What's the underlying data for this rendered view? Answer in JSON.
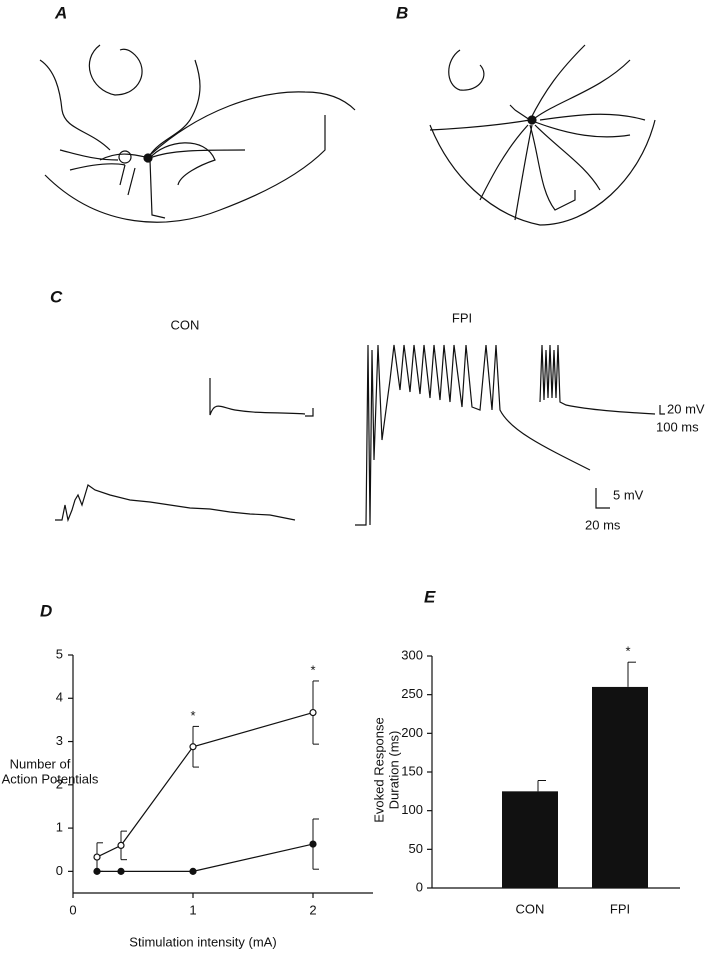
{
  "figure": {
    "panels": [
      "A",
      "B",
      "C",
      "D",
      "E"
    ],
    "trace_labels": [
      "CON",
      "FPI"
    ],
    "scale_bars": [
      "20 mV",
      "100 ms",
      "5 mV",
      "20 ms"
    ]
  },
  "chart_data": [
    {
      "type": "line",
      "xlabel": "Stimulation intensity (mA)",
      "ylabel_lines": [
        "Number of",
        "Action Potentials"
      ],
      "xlim": [
        0,
        2.5
      ],
      "xticks": [
        0,
        1,
        2
      ],
      "ylim": [
        -0.5,
        5
      ],
      "yticks": [
        0,
        1,
        2,
        3,
        4,
        5
      ],
      "x": [
        0.2,
        0.4,
        1,
        2
      ],
      "series": [
        {
          "marker": "open",
          "color": "#111111",
          "values": [
            0.33,
            0.6,
            2.88,
            3.67
          ],
          "errors": [
            0.33,
            0.33,
            0.47,
            0.73
          ],
          "markers": [
            null,
            null,
            "*",
            "*"
          ]
        },
        {
          "marker": "filled",
          "color": "#111111",
          "values": [
            0,
            0,
            0,
            0.63
          ],
          "errors": [
            0,
            0,
            0,
            0.58
          ]
        }
      ]
    },
    {
      "type": "bar",
      "ylabel_lines": [
        "Evoked Response",
        "Duration (ms)"
      ],
      "categories": [
        "CON",
        "FPI"
      ],
      "values": [
        125,
        260
      ],
      "errors": [
        14,
        32
      ],
      "markers": [
        null,
        "*"
      ],
      "color": "#111111",
      "ylim": [
        0,
        300
      ],
      "yticks": [
        0,
        50,
        100,
        150,
        200,
        250,
        300
      ]
    }
  ]
}
